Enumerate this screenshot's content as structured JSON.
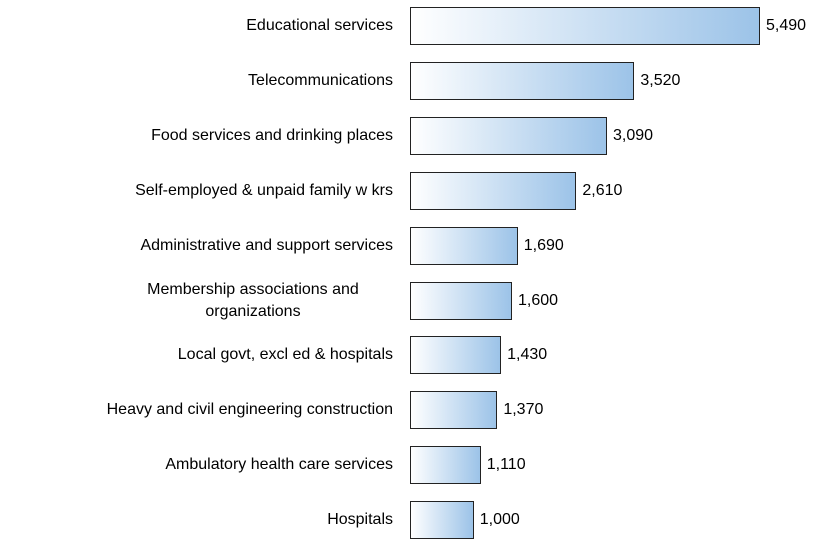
{
  "chart_data": {
    "type": "bar",
    "orientation": "horizontal",
    "categories": [
      "Educational services",
      "Telecommunications",
      "Food services and drinking places",
      "Self-employed & unpaid family w krs",
      "Administrative and support services",
      "Membership associations and organizations",
      "Local govt, excl ed & hospitals",
      "Heavy and civil engineering construction",
      "Ambulatory health care services",
      "Hospitals"
    ],
    "values": [
      5490,
      3520,
      3090,
      2610,
      1690,
      1600,
      1430,
      1370,
      1110,
      1000
    ],
    "value_labels": [
      "5,490",
      "3,520",
      "3,090",
      "2,610",
      "1,690",
      "1,600",
      "1,430",
      "1,370",
      "1,110",
      "1,000"
    ],
    "color": "#9cc3e8"
  }
}
